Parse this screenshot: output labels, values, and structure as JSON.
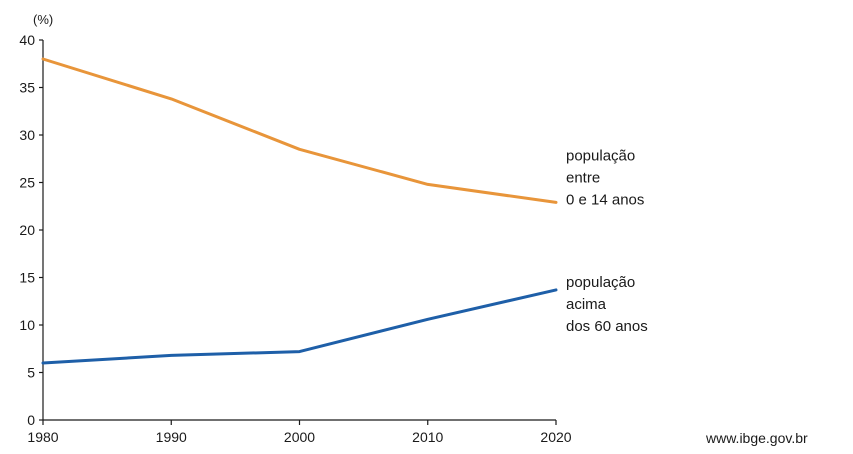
{
  "chart_data": {
    "type": "line",
    "ylabel": "(%)",
    "x": [
      1980,
      1990,
      2000,
      2010,
      2020
    ],
    "x_ticks": [
      "1980",
      "1990",
      "2000",
      "2010",
      "2020"
    ],
    "y_ticks": [
      "0",
      "5",
      "10",
      "15",
      "20",
      "25",
      "30",
      "35",
      "40"
    ],
    "xlim": [
      1980,
      2020
    ],
    "ylim": [
      0,
      40
    ],
    "grid": false,
    "series": [
      {
        "name_lines": [
          "população",
          "entre",
          "0 e 14 anos"
        ],
        "color": "#e8953a",
        "values": [
          38.0,
          33.8,
          28.5,
          24.8,
          22.9
        ]
      },
      {
        "name_lines": [
          "população",
          "acima",
          "dos 60 anos"
        ],
        "color": "#1e5fa8",
        "values": [
          6.0,
          6.8,
          7.2,
          10.6,
          13.7
        ]
      }
    ],
    "source": "www.ibge.gov.br"
  }
}
